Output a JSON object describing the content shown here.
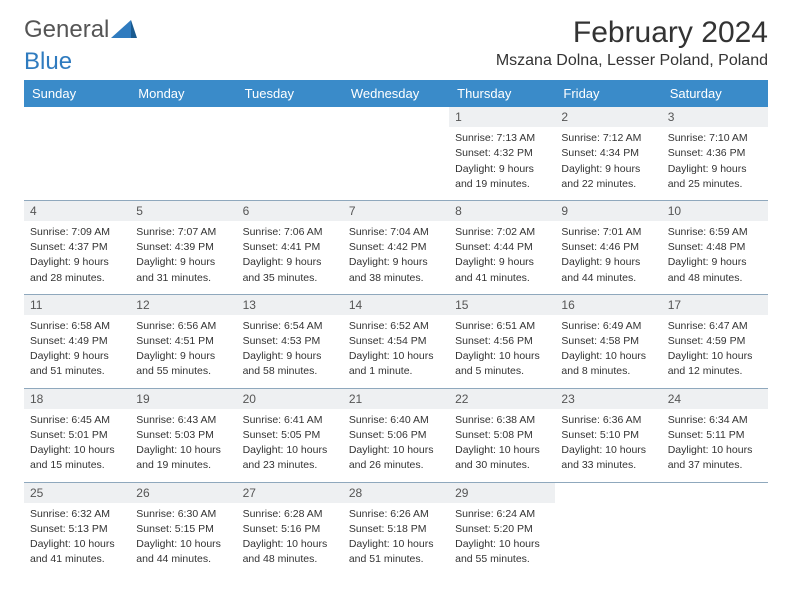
{
  "logo": {
    "text_gray": "General",
    "text_blue": "Blue"
  },
  "title": "February 2024",
  "location": "Mszana Dolna, Lesser Poland, Poland",
  "colors": {
    "header_bg": "#3a8bc9",
    "daynum_bg": "#eef0f2",
    "rule": "#8fa8bd",
    "logo_blue": "#2f7bbf"
  },
  "day_headers": [
    "Sunday",
    "Monday",
    "Tuesday",
    "Wednesday",
    "Thursday",
    "Friday",
    "Saturday"
  ],
  "weeks": [
    [
      null,
      null,
      null,
      null,
      {
        "n": "1",
        "sr": "Sunrise: 7:13 AM",
        "ss": "Sunset: 4:32 PM",
        "d1": "Daylight: 9 hours",
        "d2": "and 19 minutes."
      },
      {
        "n": "2",
        "sr": "Sunrise: 7:12 AM",
        "ss": "Sunset: 4:34 PM",
        "d1": "Daylight: 9 hours",
        "d2": "and 22 minutes."
      },
      {
        "n": "3",
        "sr": "Sunrise: 7:10 AM",
        "ss": "Sunset: 4:36 PM",
        "d1": "Daylight: 9 hours",
        "d2": "and 25 minutes."
      }
    ],
    [
      {
        "n": "4",
        "sr": "Sunrise: 7:09 AM",
        "ss": "Sunset: 4:37 PM",
        "d1": "Daylight: 9 hours",
        "d2": "and 28 minutes."
      },
      {
        "n": "5",
        "sr": "Sunrise: 7:07 AM",
        "ss": "Sunset: 4:39 PM",
        "d1": "Daylight: 9 hours",
        "d2": "and 31 minutes."
      },
      {
        "n": "6",
        "sr": "Sunrise: 7:06 AM",
        "ss": "Sunset: 4:41 PM",
        "d1": "Daylight: 9 hours",
        "d2": "and 35 minutes."
      },
      {
        "n": "7",
        "sr": "Sunrise: 7:04 AM",
        "ss": "Sunset: 4:42 PM",
        "d1": "Daylight: 9 hours",
        "d2": "and 38 minutes."
      },
      {
        "n": "8",
        "sr": "Sunrise: 7:02 AM",
        "ss": "Sunset: 4:44 PM",
        "d1": "Daylight: 9 hours",
        "d2": "and 41 minutes."
      },
      {
        "n": "9",
        "sr": "Sunrise: 7:01 AM",
        "ss": "Sunset: 4:46 PM",
        "d1": "Daylight: 9 hours",
        "d2": "and 44 minutes."
      },
      {
        "n": "10",
        "sr": "Sunrise: 6:59 AM",
        "ss": "Sunset: 4:48 PM",
        "d1": "Daylight: 9 hours",
        "d2": "and 48 minutes."
      }
    ],
    [
      {
        "n": "11",
        "sr": "Sunrise: 6:58 AM",
        "ss": "Sunset: 4:49 PM",
        "d1": "Daylight: 9 hours",
        "d2": "and 51 minutes."
      },
      {
        "n": "12",
        "sr": "Sunrise: 6:56 AM",
        "ss": "Sunset: 4:51 PM",
        "d1": "Daylight: 9 hours",
        "d2": "and 55 minutes."
      },
      {
        "n": "13",
        "sr": "Sunrise: 6:54 AM",
        "ss": "Sunset: 4:53 PM",
        "d1": "Daylight: 9 hours",
        "d2": "and 58 minutes."
      },
      {
        "n": "14",
        "sr": "Sunrise: 6:52 AM",
        "ss": "Sunset: 4:54 PM",
        "d1": "Daylight: 10 hours",
        "d2": "and 1 minute."
      },
      {
        "n": "15",
        "sr": "Sunrise: 6:51 AM",
        "ss": "Sunset: 4:56 PM",
        "d1": "Daylight: 10 hours",
        "d2": "and 5 minutes."
      },
      {
        "n": "16",
        "sr": "Sunrise: 6:49 AM",
        "ss": "Sunset: 4:58 PM",
        "d1": "Daylight: 10 hours",
        "d2": "and 8 minutes."
      },
      {
        "n": "17",
        "sr": "Sunrise: 6:47 AM",
        "ss": "Sunset: 4:59 PM",
        "d1": "Daylight: 10 hours",
        "d2": "and 12 minutes."
      }
    ],
    [
      {
        "n": "18",
        "sr": "Sunrise: 6:45 AM",
        "ss": "Sunset: 5:01 PM",
        "d1": "Daylight: 10 hours",
        "d2": "and 15 minutes."
      },
      {
        "n": "19",
        "sr": "Sunrise: 6:43 AM",
        "ss": "Sunset: 5:03 PM",
        "d1": "Daylight: 10 hours",
        "d2": "and 19 minutes."
      },
      {
        "n": "20",
        "sr": "Sunrise: 6:41 AM",
        "ss": "Sunset: 5:05 PM",
        "d1": "Daylight: 10 hours",
        "d2": "and 23 minutes."
      },
      {
        "n": "21",
        "sr": "Sunrise: 6:40 AM",
        "ss": "Sunset: 5:06 PM",
        "d1": "Daylight: 10 hours",
        "d2": "and 26 minutes."
      },
      {
        "n": "22",
        "sr": "Sunrise: 6:38 AM",
        "ss": "Sunset: 5:08 PM",
        "d1": "Daylight: 10 hours",
        "d2": "and 30 minutes."
      },
      {
        "n": "23",
        "sr": "Sunrise: 6:36 AM",
        "ss": "Sunset: 5:10 PM",
        "d1": "Daylight: 10 hours",
        "d2": "and 33 minutes."
      },
      {
        "n": "24",
        "sr": "Sunrise: 6:34 AM",
        "ss": "Sunset: 5:11 PM",
        "d1": "Daylight: 10 hours",
        "d2": "and 37 minutes."
      }
    ],
    [
      {
        "n": "25",
        "sr": "Sunrise: 6:32 AM",
        "ss": "Sunset: 5:13 PM",
        "d1": "Daylight: 10 hours",
        "d2": "and 41 minutes."
      },
      {
        "n": "26",
        "sr": "Sunrise: 6:30 AM",
        "ss": "Sunset: 5:15 PM",
        "d1": "Daylight: 10 hours",
        "d2": "and 44 minutes."
      },
      {
        "n": "27",
        "sr": "Sunrise: 6:28 AM",
        "ss": "Sunset: 5:16 PM",
        "d1": "Daylight: 10 hours",
        "d2": "and 48 minutes."
      },
      {
        "n": "28",
        "sr": "Sunrise: 6:26 AM",
        "ss": "Sunset: 5:18 PM",
        "d1": "Daylight: 10 hours",
        "d2": "and 51 minutes."
      },
      {
        "n": "29",
        "sr": "Sunrise: 6:24 AM",
        "ss": "Sunset: 5:20 PM",
        "d1": "Daylight: 10 hours",
        "d2": "and 55 minutes."
      },
      null,
      null
    ]
  ]
}
